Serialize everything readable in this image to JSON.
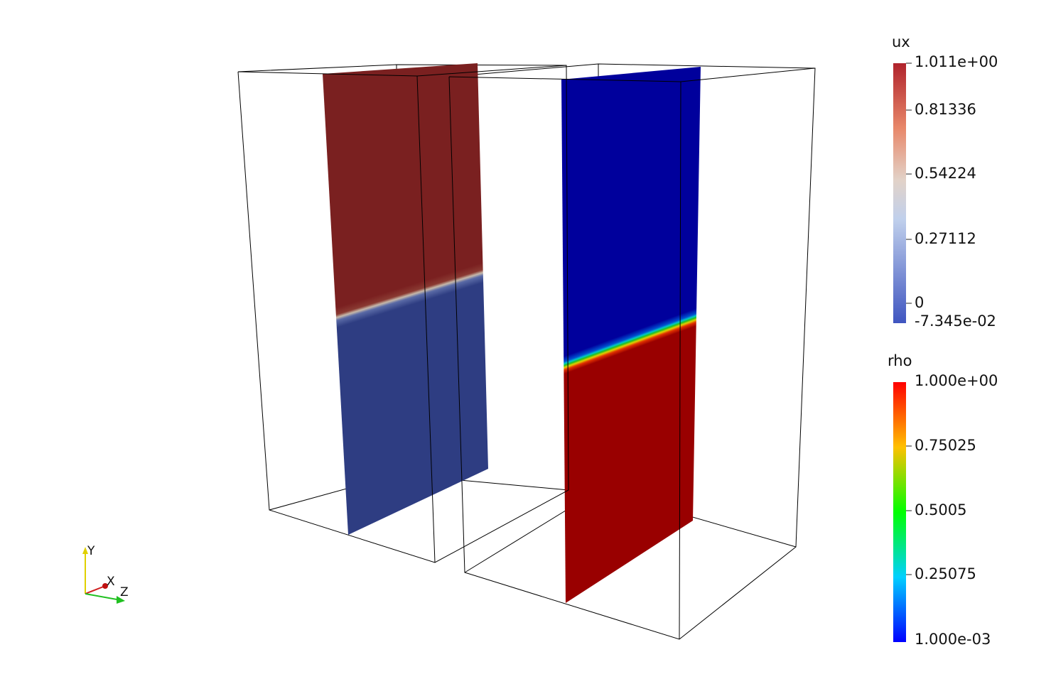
{
  "colorbars": [
    {
      "title": "ux",
      "tick_labels": [
        "1.011e+00",
        "0.81336",
        "0.54224",
        "0.27112",
        "0",
        "-7.345e-02"
      ]
    },
    {
      "title": "rho",
      "tick_labels": [
        "1.000e+00",
        "0.75025",
        "0.5005",
        "0.25075",
        "1.000e-03"
      ]
    }
  ],
  "axes_triad": {
    "labels": [
      "Y",
      "X",
      "Z"
    ]
  }
}
